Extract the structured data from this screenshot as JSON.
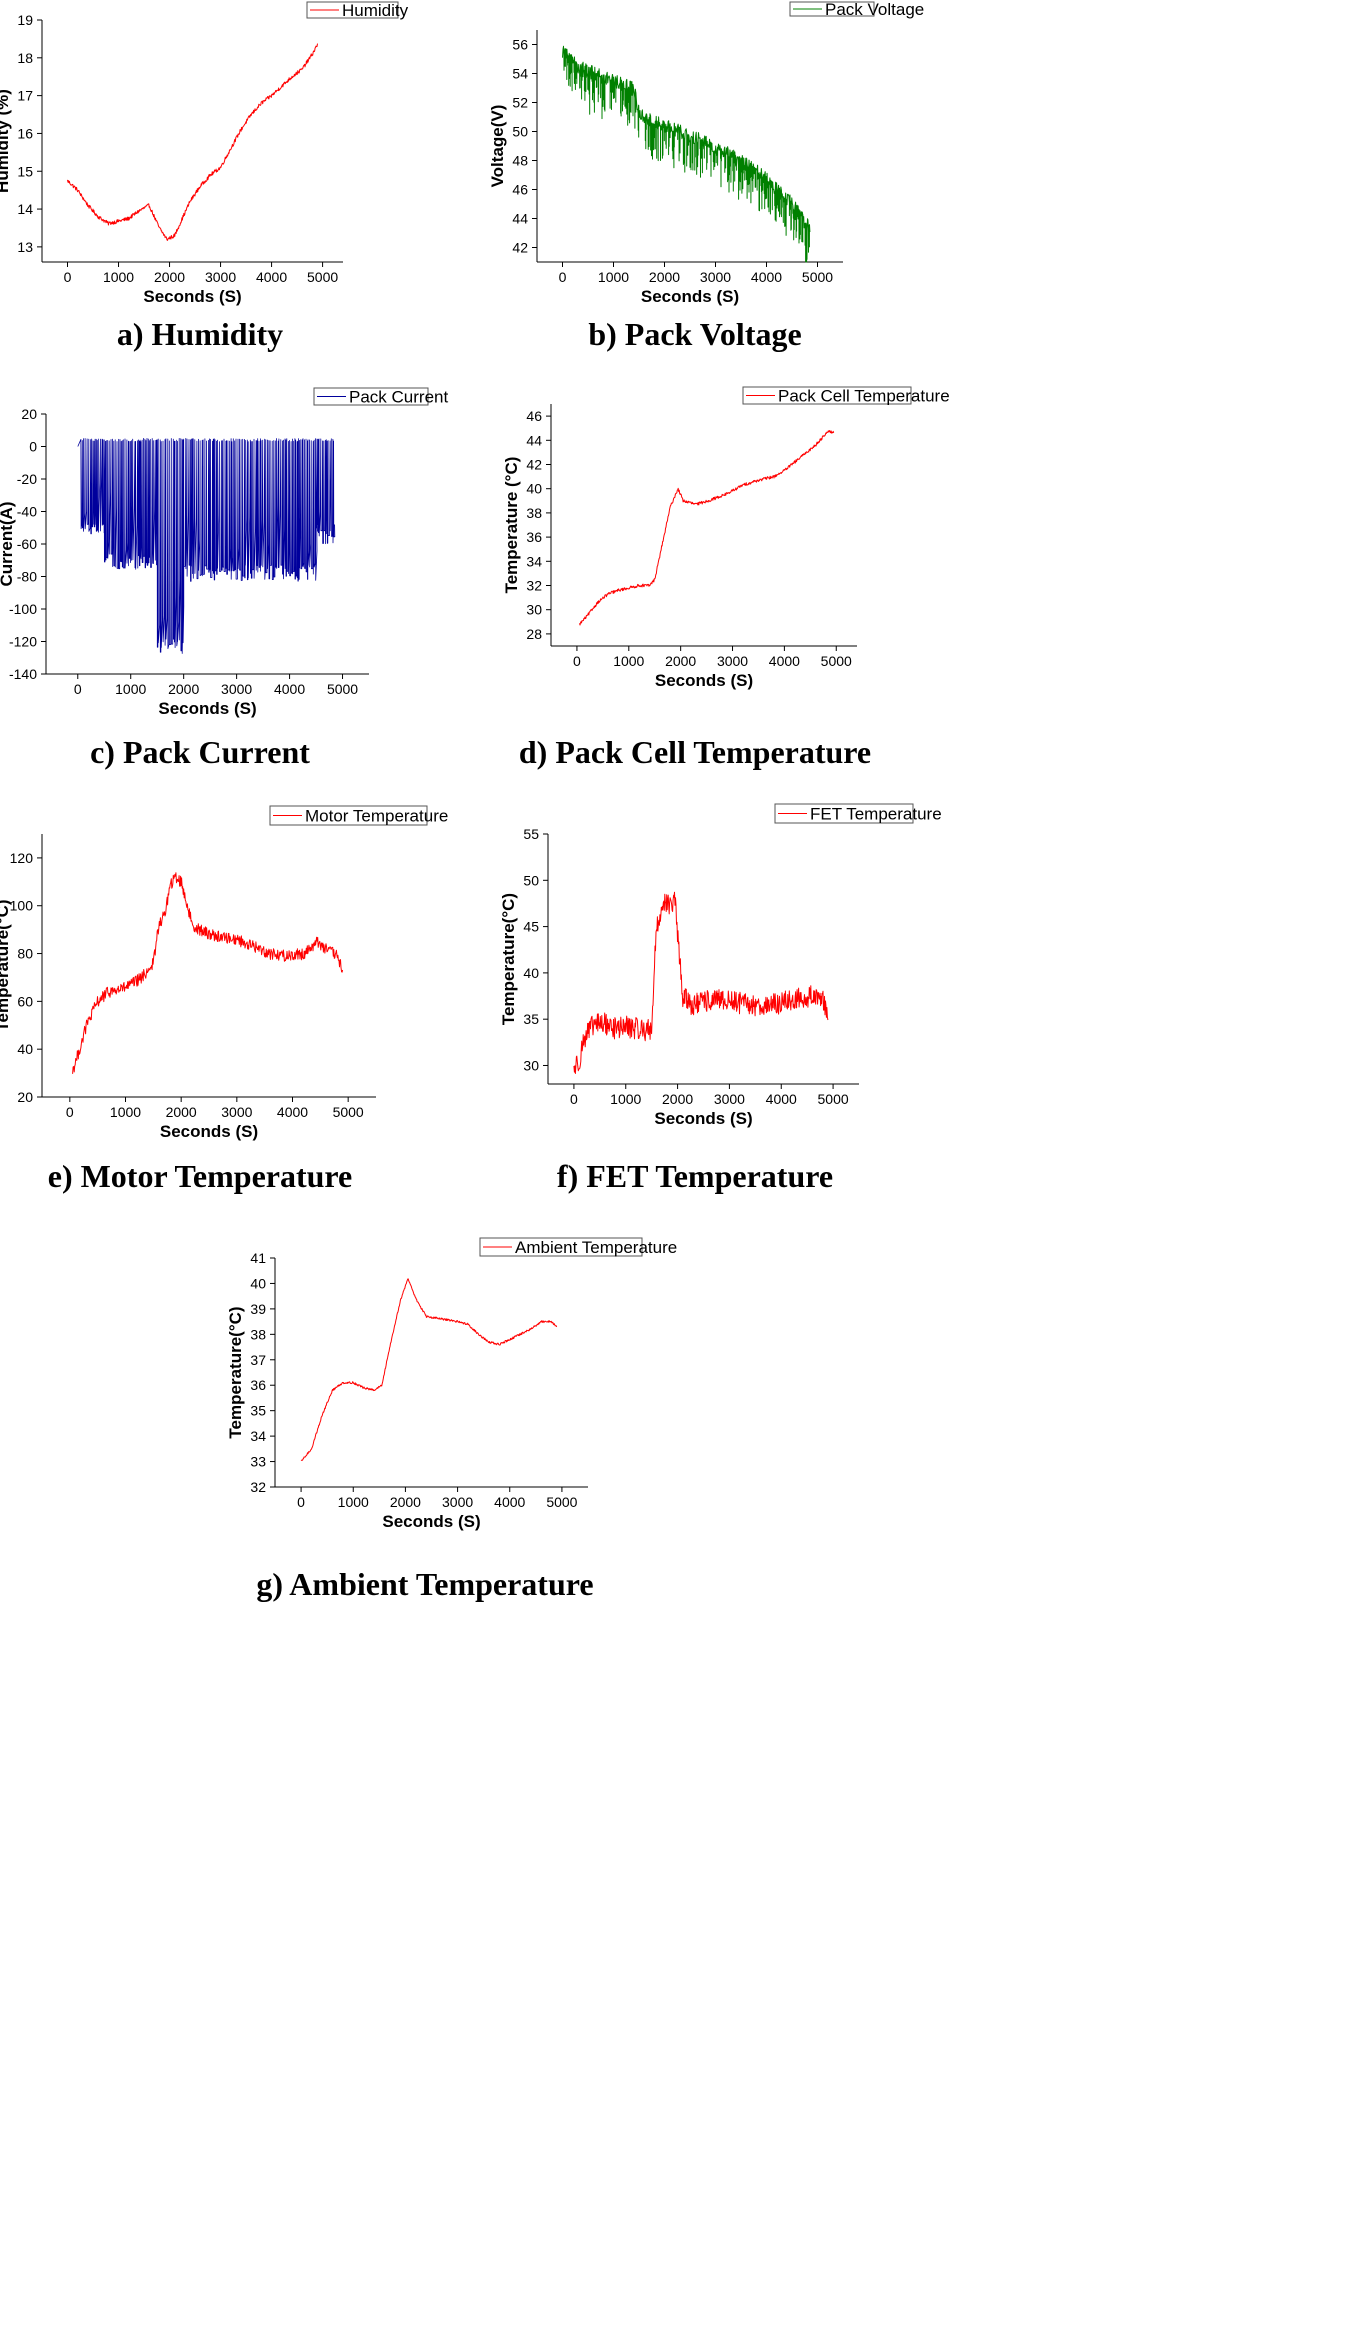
{
  "chart_data": [
    {
      "id": "humidity",
      "type": "line",
      "caption": "a) Humidity",
      "xlabel": "Seconds (S)",
      "ylabel": "Humidity (%)",
      "xlim": [
        -500,
        5400
      ],
      "ylim": [
        12.6,
        19
      ],
      "xticks": [
        0,
        1000,
        2000,
        3000,
        4000,
        5000
      ],
      "yticks": [
        13,
        14,
        15,
        16,
        17,
        18,
        19
      ],
      "legend": "top-right",
      "grid": false,
      "color": "#ff0000",
      "noise": 0.05,
      "series": [
        {
          "name": "Humidity",
          "x": [
            0,
            200,
            400,
            600,
            800,
            1000,
            1200,
            1400,
            1600,
            1800,
            1950,
            2100,
            2400,
            2600,
            2800,
            3000,
            3200,
            3400,
            3600,
            3800,
            4000,
            4200,
            4400,
            4600,
            4800,
            4900
          ],
          "y": [
            14.75,
            14.5,
            14.1,
            13.8,
            13.62,
            13.68,
            13.75,
            13.95,
            14.1,
            13.5,
            13.2,
            13.3,
            14.2,
            14.6,
            14.9,
            15.1,
            15.6,
            16.1,
            16.5,
            16.8,
            17.0,
            17.25,
            17.5,
            17.7,
            18.1,
            18.35
          ]
        }
      ]
    },
    {
      "id": "voltage",
      "type": "line",
      "caption": "b) Pack Voltage",
      "xlabel": "Seconds (S)",
      "ylabel": "Voltage(V)",
      "xlim": [
        -500,
        5500
      ],
      "ylim": [
        41,
        57
      ],
      "xticks": [
        0,
        1000,
        2000,
        3000,
        4000,
        5000
      ],
      "yticks": [
        42,
        44,
        46,
        48,
        50,
        52,
        54,
        56
      ],
      "legend": "top-right",
      "grid": false,
      "color": "#008000",
      "noise": 0.5,
      "spikes": {
        "count": 260,
        "depth_min": 0.5,
        "depth_max": 2.5
      },
      "series": [
        {
          "name": "Pack Voltage",
          "x": [
            0,
            300,
            600,
            900,
            1200,
            1400,
            1500,
            1600,
            1800,
            2000,
            2300,
            2600,
            3000,
            3300,
            3600,
            3900,
            4200,
            4500,
            4700,
            4850
          ],
          "y": [
            55.5,
            54.5,
            54.0,
            53.6,
            53.2,
            52.9,
            51.5,
            51.0,
            50.6,
            50.4,
            50.0,
            49.6,
            48.8,
            48.4,
            47.7,
            47.0,
            46.0,
            45.0,
            44.0,
            43.3
          ]
        }
      ]
    },
    {
      "id": "current",
      "type": "line",
      "caption": "c) Pack Current",
      "xlabel": "Seconds (S)",
      "ylabel": "Current(A)",
      "xlim": [
        -600,
        5500
      ],
      "ylim": [
        -140,
        20
      ],
      "xticks": [
        0,
        1000,
        2000,
        3000,
        4000,
        5000
      ],
      "yticks": [
        20,
        0,
        -20,
        -40,
        -60,
        -80,
        -100,
        -120,
        -140
      ],
      "legend": "top-right",
      "grid": false,
      "color": "#00009c",
      "square_wave": {
        "high": 5,
        "segments": [
          {
            "x0": 60,
            "x1": 500,
            "low": -55
          },
          {
            "x0": 500,
            "x1": 1500,
            "low": -76
          },
          {
            "x0": 1500,
            "x1": 2000,
            "low": -128
          },
          {
            "x0": 2000,
            "x1": 4500,
            "low": -83
          },
          {
            "x0": 4500,
            "x1": 4850,
            "low": -60
          }
        ]
      },
      "series": [
        {
          "name": "Pack Current",
          "x": [
            0,
            4850
          ],
          "y": [
            0,
            -48
          ]
        }
      ]
    },
    {
      "id": "cell_temp",
      "type": "line",
      "caption": "d) Pack Cell Temperature",
      "xlabel": "Seconds (S)",
      "ylabel": "Temperature (°C)",
      "xlim": [
        -500,
        5400
      ],
      "ylim": [
        27,
        47
      ],
      "xticks": [
        0,
        1000,
        2000,
        3000,
        4000,
        5000
      ],
      "yticks": [
        28,
        30,
        32,
        34,
        36,
        38,
        40,
        42,
        44,
        46
      ],
      "legend": "top-right",
      "grid": false,
      "color": "#ff0000",
      "noise": 0.12,
      "series": [
        {
          "name": "Pack Cell Temperature",
          "x": [
            50,
            200,
            400,
            600,
            800,
            1000,
            1200,
            1400,
            1500,
            1600,
            1700,
            1800,
            1950,
            2050,
            2300,
            2600,
            2900,
            3200,
            3500,
            3800,
            4000,
            4200,
            4400,
            4600,
            4850,
            4950
          ],
          "y": [
            28.8,
            29.5,
            30.6,
            31.3,
            31.6,
            31.8,
            32.0,
            32.0,
            32.5,
            34.5,
            36.5,
            38.5,
            40.0,
            39.0,
            38.7,
            39.1,
            39.6,
            40.3,
            40.7,
            41.0,
            41.5,
            42.2,
            42.9,
            43.6,
            44.8,
            44.6
          ]
        }
      ]
    },
    {
      "id": "motor_temp",
      "type": "line",
      "caption": "e) Motor Temperature",
      "xlabel": "Seconds (S)",
      "ylabel": "Temperature(°C)",
      "xlim": [
        -500,
        5500
      ],
      "ylim": [
        20,
        130
      ],
      "xticks": [
        0,
        1000,
        2000,
        3000,
        4000,
        5000
      ],
      "yticks": [
        20,
        40,
        60,
        80,
        100,
        120
      ],
      "legend": "top-right",
      "grid": false,
      "color": "#ff0000",
      "noise": 2.5,
      "series": [
        {
          "name": "Motor Temperature",
          "x": [
            50,
            150,
            300,
            500,
            700,
            900,
            1100,
            1300,
            1500,
            1600,
            1700,
            1800,
            1900,
            2000,
            2200,
            2400,
            2700,
            3000,
            3300,
            3600,
            3900,
            4200,
            4450,
            4600,
            4800,
            4900
          ],
          "y": [
            31,
            38,
            50,
            60,
            64,
            65,
            67,
            70,
            76,
            92,
            96,
            108,
            112,
            110,
            92,
            89,
            87,
            86,
            83,
            80,
            79,
            80,
            85,
            82,
            79,
            73
          ]
        }
      ]
    },
    {
      "id": "fet_temp",
      "type": "line",
      "caption": "f) FET Temperature",
      "xlabel": "Seconds (S)",
      "ylabel": "Temperature(°C)",
      "xlim": [
        -500,
        5500
      ],
      "ylim": [
        28,
        55
      ],
      "xticks": [
        0,
        1000,
        2000,
        3000,
        4000,
        5000
      ],
      "yticks": [
        30,
        35,
        40,
        45,
        50,
        55
      ],
      "legend": "top-right",
      "grid": false,
      "color": "#ff0000",
      "noise": 1.2,
      "series": [
        {
          "name": "FET Temperature",
          "x": [
            0,
            100,
            200,
            400,
            600,
            800,
            1000,
            1200,
            1400,
            1500,
            1580,
            1650,
            1750,
            1850,
            1950,
            2000,
            2100,
            2300,
            2600,
            3000,
            3400,
            3800,
            4200,
            4600,
            4800,
            4900
          ],
          "y": [
            29.7,
            30.5,
            33.0,
            34.5,
            34.5,
            34.0,
            34.2,
            34.0,
            33.8,
            34.0,
            44.0,
            46.0,
            48.0,
            47.0,
            48.0,
            44.0,
            37.5,
            36.5,
            37.0,
            37.0,
            36.5,
            36.5,
            37.0,
            37.5,
            37.5,
            35.0
          ]
        }
      ]
    },
    {
      "id": "ambient_temp",
      "type": "line",
      "caption": "g) Ambient Temperature",
      "xlabel": "Seconds (S)",
      "ylabel": "Temperature(°C)",
      "xlim": [
        -500,
        5500
      ],
      "ylim": [
        32,
        41
      ],
      "xticks": [
        0,
        1000,
        2000,
        3000,
        4000,
        5000
      ],
      "yticks": [
        32,
        33,
        34,
        35,
        36,
        37,
        38,
        39,
        40,
        41
      ],
      "legend": "top-right",
      "grid": false,
      "color": "#ff0000",
      "noise": 0.04,
      "series": [
        {
          "name": "Ambient Temperature",
          "x": [
            0,
            200,
            400,
            600,
            800,
            1000,
            1200,
            1400,
            1550,
            1700,
            1900,
            2050,
            2200,
            2400,
            2700,
            3000,
            3200,
            3400,
            3600,
            3800,
            4000,
            4200,
            4400,
            4600,
            4800,
            4900
          ],
          "y": [
            33.0,
            33.5,
            34.8,
            35.8,
            36.1,
            36.1,
            35.9,
            35.8,
            36.0,
            37.5,
            39.3,
            40.2,
            39.4,
            38.7,
            38.6,
            38.5,
            38.4,
            38.0,
            37.7,
            37.6,
            37.8,
            38.0,
            38.2,
            38.5,
            38.5,
            38.3
          ]
        }
      ]
    }
  ]
}
